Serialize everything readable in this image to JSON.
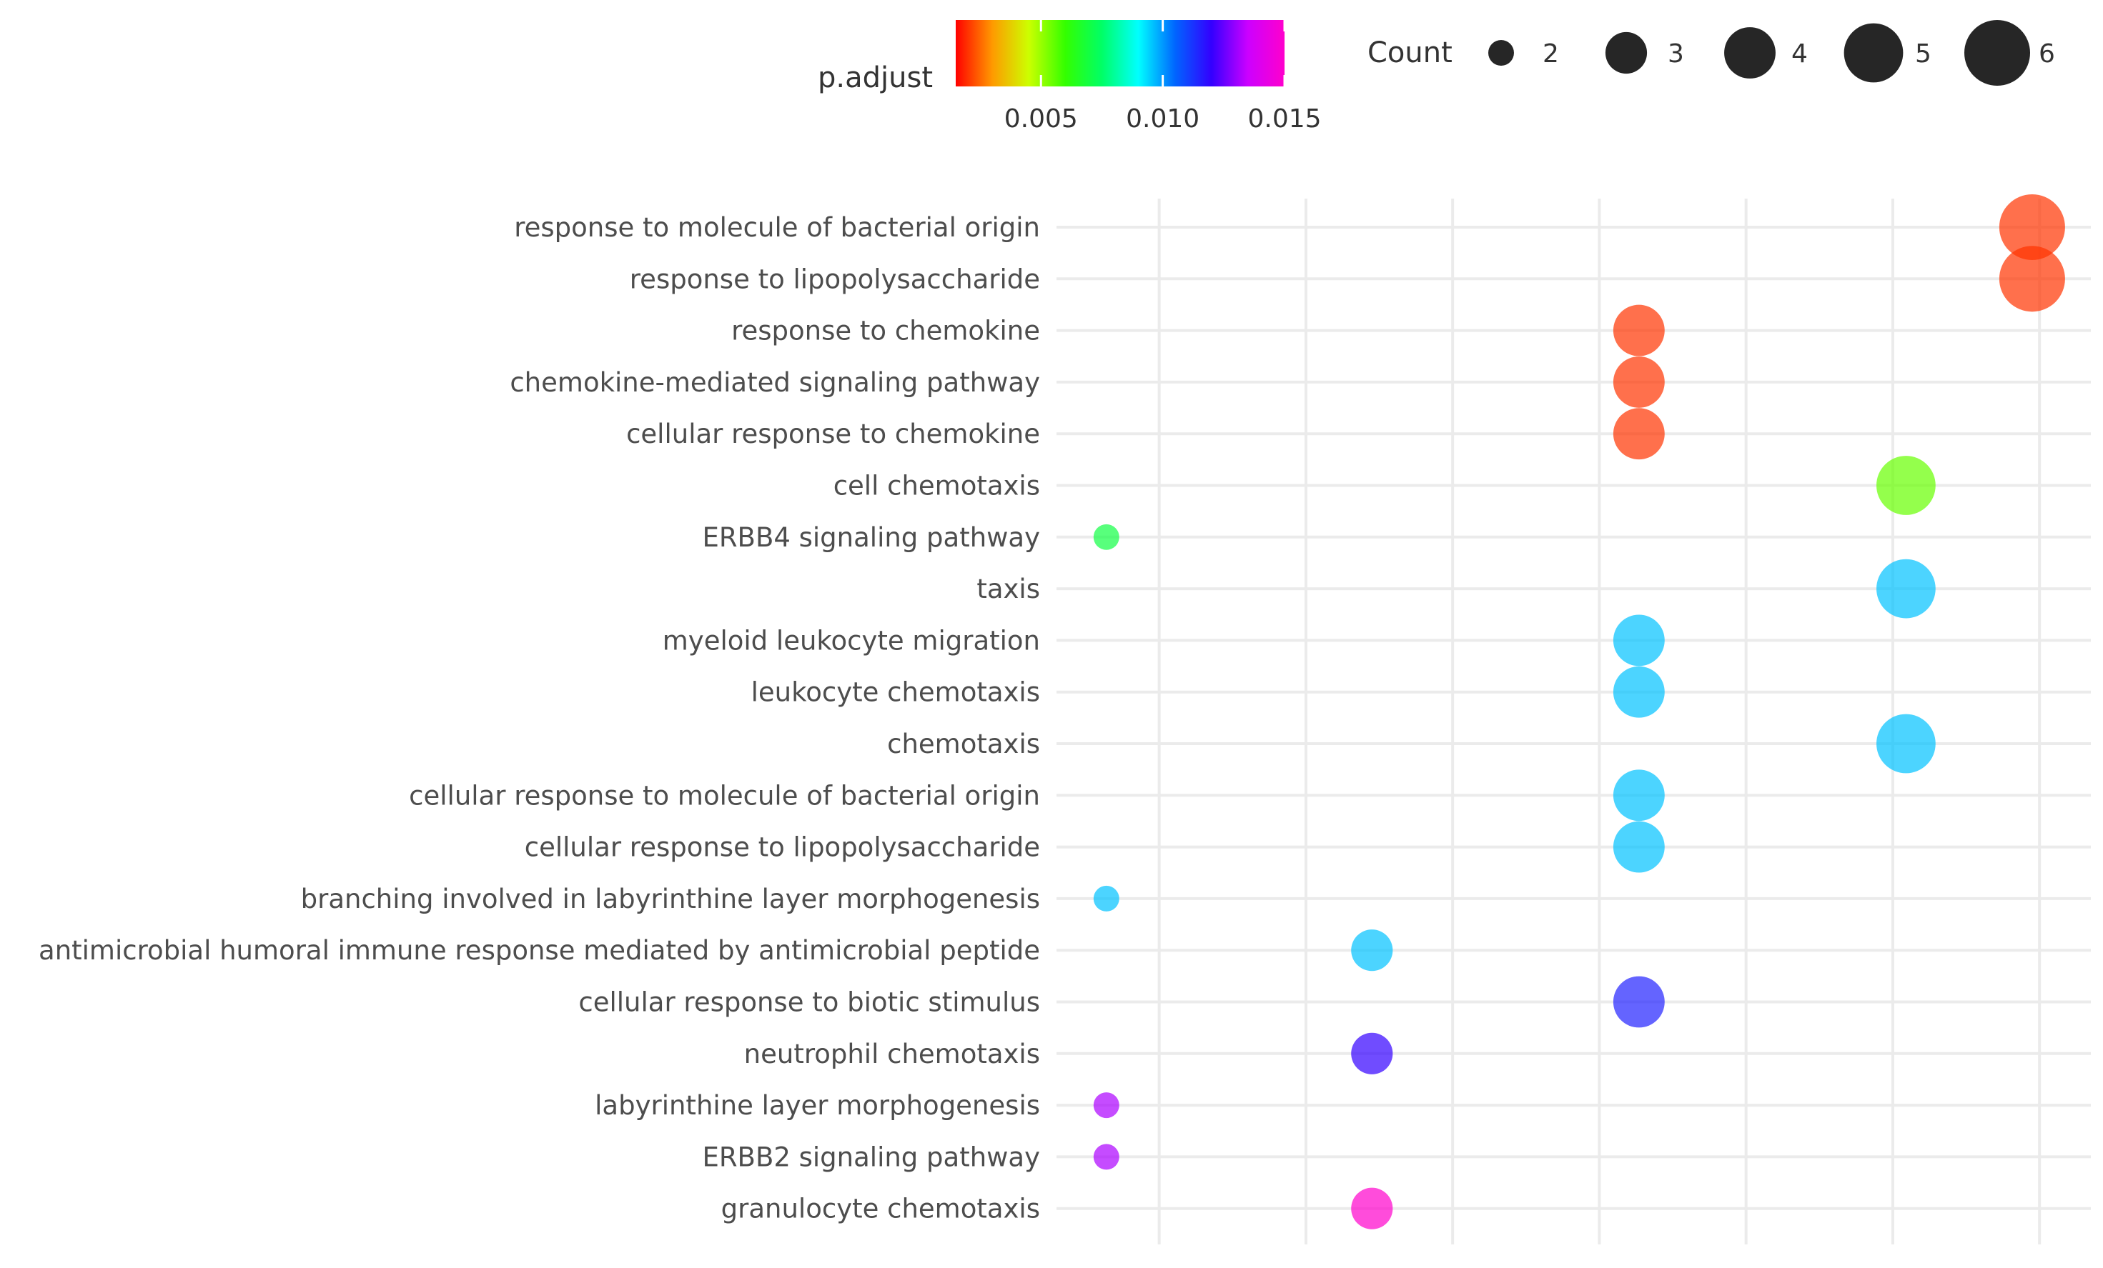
{
  "chart_data": {
    "type": "scatter",
    "title": "",
    "xlabel": "",
    "ylabel": "",
    "x_ticks_shown": false,
    "x_gridlines": [
      0.04,
      0.05,
      0.06,
      0.07,
      0.08,
      0.09,
      0.1
    ],
    "xlim": [
      0.033,
      0.1035
    ],
    "categories": [
      "response to molecule of bacterial origin",
      "response to lipopolysaccharide",
      "response to chemokine",
      "chemokine-mediated signaling pathway",
      "cellular response to chemokine",
      "cell chemotaxis",
      "ERBB4 signaling pathway",
      "taxis",
      "myeloid leukocyte migration",
      "leukocyte chemotaxis",
      "chemotaxis",
      "cellular response to molecule of bacterial origin",
      "cellular response to lipopolysaccharide",
      "branching involved in labyrinthine layer morphogenesis",
      "antimicrobial humoral immune response mediated by antimicrobial peptide",
      "cellular response to biotic stimulus",
      "neutrophil chemotaxis",
      "labyrinthine layer morphogenesis",
      "ERBB2 signaling pathway",
      "granulocyte chemotaxis"
    ],
    "points": [
      {
        "x": 0.0995,
        "count": 6,
        "p_adjust": 0.002
      },
      {
        "x": 0.0995,
        "count": 6,
        "p_adjust": 0.002
      },
      {
        "x": 0.0727,
        "count": 4,
        "p_adjust": 0.002
      },
      {
        "x": 0.0727,
        "count": 4,
        "p_adjust": 0.002
      },
      {
        "x": 0.0727,
        "count": 4,
        "p_adjust": 0.002
      },
      {
        "x": 0.0909,
        "count": 5,
        "p_adjust": 0.0055
      },
      {
        "x": 0.0364,
        "count": 2,
        "p_adjust": 0.007
      },
      {
        "x": 0.0909,
        "count": 5,
        "p_adjust": 0.0096
      },
      {
        "x": 0.0727,
        "count": 4,
        "p_adjust": 0.0096
      },
      {
        "x": 0.0727,
        "count": 4,
        "p_adjust": 0.0096
      },
      {
        "x": 0.0909,
        "count": 5,
        "p_adjust": 0.0096
      },
      {
        "x": 0.0727,
        "count": 4,
        "p_adjust": 0.0096
      },
      {
        "x": 0.0727,
        "count": 4,
        "p_adjust": 0.0096
      },
      {
        "x": 0.0364,
        "count": 2,
        "p_adjust": 0.0096
      },
      {
        "x": 0.0545,
        "count": 3,
        "p_adjust": 0.0096
      },
      {
        "x": 0.0727,
        "count": 4,
        "p_adjust": 0.0115
      },
      {
        "x": 0.0545,
        "count": 3,
        "p_adjust": 0.012
      },
      {
        "x": 0.0364,
        "count": 2,
        "p_adjust": 0.0132
      },
      {
        "x": 0.0364,
        "count": 2,
        "p_adjust": 0.0132
      },
      {
        "x": 0.0545,
        "count": 3,
        "p_adjust": 0.015
      }
    ],
    "color_legend": {
      "title": "p.adjust",
      "range": [
        0.0015,
        0.015
      ],
      "ticks": [
        0.005,
        0.01,
        0.015
      ],
      "tick_labels": [
        "0.005",
        "0.010",
        "0.015"
      ],
      "colors": [
        "#ff0000",
        "#ff9900",
        "#ccff00",
        "#33ff00",
        "#00ff66",
        "#00ffff",
        "#0066ff",
        "#3300ff",
        "#cc00ff",
        "#ff00cc"
      ]
    },
    "size_legend": {
      "title": "Count",
      "values": [
        2,
        3,
        4,
        5,
        6
      ],
      "labels": [
        "2",
        "3",
        "4",
        "5",
        "6"
      ]
    },
    "point_alpha": 0.7,
    "grid": true,
    "legend_position": "top"
  }
}
